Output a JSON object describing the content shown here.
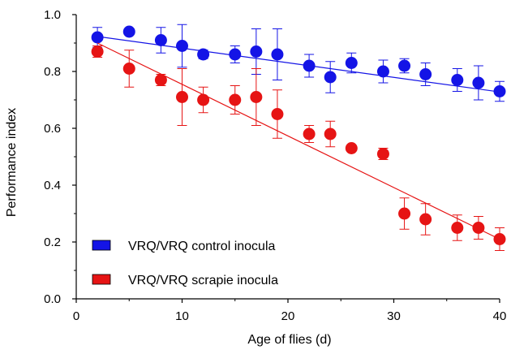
{
  "chart_data": {
    "type": "scatter",
    "xlabel": "Age of flies (d)",
    "ylabel": "Performance index",
    "xlim": [
      0,
      40
    ],
    "ylim": [
      0.0,
      1.0
    ],
    "x_ticks": [
      "0",
      "10",
      "20",
      "30",
      "40"
    ],
    "y_ticks": [
      "0.0",
      "0.2",
      "0.4",
      "0.6",
      "0.8",
      "1.0"
    ],
    "grid": false,
    "legend_position": "bottom-left",
    "series": [
      {
        "name": "VRQ/VRQ control inocula",
        "color": "#1414e6",
        "x": [
          2,
          5,
          8,
          10,
          12,
          15,
          17,
          19,
          22,
          24,
          26,
          29,
          31,
          33,
          36,
          38,
          40
        ],
        "y": [
          0.92,
          0.94,
          0.91,
          0.89,
          0.86,
          0.86,
          0.87,
          0.86,
          0.82,
          0.78,
          0.83,
          0.8,
          0.82,
          0.79,
          0.77,
          0.76,
          0.73
        ],
        "err": [
          0.035,
          0.01,
          0.045,
          0.075,
          0.015,
          0.03,
          0.08,
          0.09,
          0.04,
          0.055,
          0.035,
          0.04,
          0.025,
          0.04,
          0.04,
          0.06,
          0.035
        ],
        "fit": [
          [
            2,
            0.923
          ],
          [
            40,
            0.728
          ]
        ]
      },
      {
        "name": "VRQ/VRQ scrapie inocula",
        "color": "#e61414",
        "x": [
          2,
          5,
          8,
          10,
          12,
          15,
          17,
          19,
          22,
          24,
          26,
          29,
          31,
          33,
          36,
          38,
          40
        ],
        "y": [
          0.87,
          0.81,
          0.77,
          0.71,
          0.7,
          0.7,
          0.71,
          0.65,
          0.58,
          0.58,
          0.53,
          0.51,
          0.3,
          0.28,
          0.25,
          0.25,
          0.21
        ],
        "err": [
          0.02,
          0.065,
          0.02,
          0.1,
          0.045,
          0.05,
          0.1,
          0.085,
          0.03,
          0.045,
          0.0,
          0.02,
          0.055,
          0.055,
          0.045,
          0.04,
          0.04
        ],
        "fit": [
          [
            2,
            0.9
          ],
          [
            40,
            0.21
          ]
        ]
      }
    ]
  }
}
